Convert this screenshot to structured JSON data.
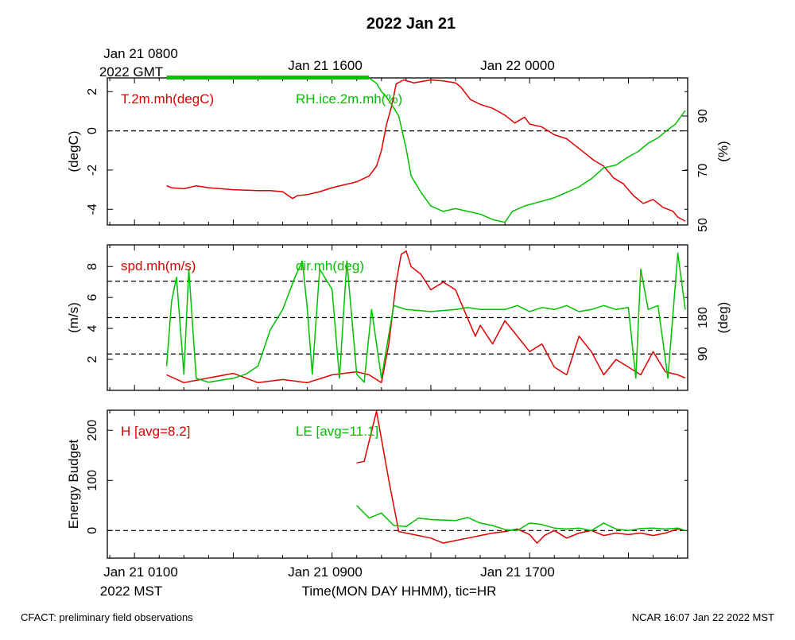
{
  "title": "2022 Jan 21",
  "top_axis": {
    "ticks": [
      "Jan 21 0800",
      "Jan 21 1600",
      "Jan 22 0000"
    ],
    "tz_label": "2022 GMT"
  },
  "bottom_axis": {
    "ticks": [
      "Jan 21 0100",
      "Jan 21 0900",
      "Jan 21 1700"
    ],
    "tz_label": "2022 MST",
    "label": "Time(MON DAY HHMM), tic=HR"
  },
  "footer": {
    "left": "CFACT: preliminary field observations",
    "right": "NCAR 16:07 Jan 22 2022 MST"
  },
  "colors": {
    "red": "#e00000",
    "green": "#00c000",
    "axis": "#000000"
  },
  "chart_data": [
    {
      "type": "line",
      "panel": "temperature-humidity",
      "x_unit": "hours since Jan 21 0000 MST",
      "xlim": [
        -0.1,
        23.4
      ],
      "ylabel": "(degC)",
      "ylim": [
        -4.8,
        2.7
      ],
      "yticks": [
        "2",
        "0",
        "-2",
        "-4"
      ],
      "y2label": "(%)",
      "y2lim": [
        50,
        104
      ],
      "y2ticks": [
        "90",
        "70",
        "50"
      ],
      "reference_lines_y": [
        0
      ],
      "series": [
        {
          "name": "T.2m.mh(degC)",
          "color": "#e00000",
          "axis": "left",
          "points": [
            [
              2.3,
              -2.8
            ],
            [
              2.5,
              -2.9
            ],
            [
              3.0,
              -2.95
            ],
            [
              3.5,
              -2.8
            ],
            [
              4.0,
              -2.9
            ],
            [
              4.5,
              -2.95
            ],
            [
              5.0,
              -3.0
            ],
            [
              6.0,
              -3.05
            ],
            [
              6.5,
              -3.05
            ],
            [
              7.0,
              -3.1
            ],
            [
              7.4,
              -3.45
            ],
            [
              7.6,
              -3.3
            ],
            [
              8.0,
              -3.25
            ],
            [
              8.5,
              -3.1
            ],
            [
              9.0,
              -2.9
            ],
            [
              9.5,
              -2.75
            ],
            [
              10.0,
              -2.6
            ],
            [
              10.5,
              -2.3
            ],
            [
              10.8,
              -1.8
            ],
            [
              11.0,
              -1.0
            ],
            [
              11.2,
              0.3
            ],
            [
              11.4,
              1.2
            ],
            [
              11.6,
              2.4
            ],
            [
              11.9,
              2.6
            ],
            [
              12.3,
              2.45
            ],
            [
              13.0,
              2.6
            ],
            [
              13.5,
              2.55
            ],
            [
              14.0,
              2.45
            ],
            [
              14.2,
              2.25
            ],
            [
              14.6,
              1.6
            ],
            [
              15.0,
              1.35
            ],
            [
              15.5,
              1.15
            ],
            [
              16.0,
              0.8
            ],
            [
              16.4,
              0.4
            ],
            [
              16.8,
              0.7
            ],
            [
              17.0,
              0.35
            ],
            [
              17.5,
              0.2
            ],
            [
              18.0,
              -0.2
            ],
            [
              18.5,
              -0.4
            ],
            [
              18.8,
              -0.7
            ],
            [
              19.2,
              -1.1
            ],
            [
              19.6,
              -1.5
            ],
            [
              20.0,
              -1.8
            ],
            [
              20.4,
              -2.4
            ],
            [
              20.8,
              -2.7
            ],
            [
              21.2,
              -3.3
            ],
            [
              21.6,
              -3.7
            ],
            [
              22.0,
              -3.5
            ],
            [
              22.4,
              -3.9
            ],
            [
              22.8,
              -4.1
            ],
            [
              23.0,
              -4.4
            ],
            [
              23.3,
              -4.6
            ]
          ]
        },
        {
          "name": "RH.ice.2m.mh(%)",
          "color": "#00c000",
          "axis": "right",
          "points": [
            [
              2.3,
              104
            ],
            [
              10.5,
              104
            ],
            [
              10.8,
              102
            ],
            [
              11.0,
              99
            ],
            [
              11.2,
              97
            ],
            [
              11.5,
              93
            ],
            [
              11.7,
              90
            ],
            [
              12.0,
              78
            ],
            [
              12.2,
              68
            ],
            [
              12.6,
              62
            ],
            [
              13.0,
              57
            ],
            [
              13.5,
              55
            ],
            [
              14.0,
              56
            ],
            [
              14.5,
              55
            ],
            [
              15.0,
              54
            ],
            [
              15.5,
              52
            ],
            [
              16.0,
              51
            ],
            [
              16.3,
              55
            ],
            [
              16.8,
              57
            ],
            [
              17.2,
              58
            ],
            [
              17.6,
              59
            ],
            [
              18.0,
              60
            ],
            [
              18.5,
              62
            ],
            [
              19.0,
              64
            ],
            [
              19.5,
              67
            ],
            [
              20.0,
              71
            ],
            [
              20.5,
              72
            ],
            [
              21.0,
              75
            ],
            [
              21.4,
              77
            ],
            [
              21.8,
              80
            ],
            [
              22.2,
              82
            ],
            [
              22.6,
              85
            ],
            [
              22.9,
              87
            ],
            [
              23.3,
              92
            ]
          ]
        }
      ],
      "header_labels": [
        "T.2m.mh(degC)",
        "RH.ice.2m.mh(%)"
      ]
    },
    {
      "type": "line",
      "panel": "wind",
      "x_unit": "hours since Jan 21 0000 MST",
      "xlim": [
        -0.1,
        23.4
      ],
      "ylabel": "(m/s)",
      "ylim": [
        0,
        9.4
      ],
      "yticks": [
        "8",
        "6",
        "4",
        "2"
      ],
      "y2label": "(deg)",
      "y2lim": [
        0,
        360
      ],
      "y2ticks": [
        "180",
        "90"
      ],
      "reference_lines_y2": [
        90,
        180,
        270
      ],
      "series": [
        {
          "name": "spd.mh(m/s)",
          "color": "#e00000",
          "axis": "left",
          "points": [
            [
              2.3,
              1.0
            ],
            [
              3.0,
              0.5
            ],
            [
              4.0,
              0.8
            ],
            [
              5.0,
              1.1
            ],
            [
              6.0,
              0.5
            ],
            [
              7.0,
              0.7
            ],
            [
              8.0,
              0.5
            ],
            [
              9.0,
              1.0
            ],
            [
              10.0,
              1.2
            ],
            [
              10.5,
              1.0
            ],
            [
              11.0,
              0.5
            ],
            [
              11.3,
              3.0
            ],
            [
              11.6,
              7.0
            ],
            [
              11.8,
              8.8
            ],
            [
              12.0,
              9.0
            ],
            [
              12.2,
              8.0
            ],
            [
              12.6,
              7.5
            ],
            [
              13.0,
              6.5
            ],
            [
              13.5,
              7.0
            ],
            [
              14.0,
              6.5
            ],
            [
              14.4,
              5.0
            ],
            [
              14.8,
              3.5
            ],
            [
              15.0,
              4.2
            ],
            [
              15.5,
              3.0
            ],
            [
              16.0,
              4.5
            ],
            [
              16.5,
              3.5
            ],
            [
              17.0,
              2.5
            ],
            [
              17.5,
              3.0
            ],
            [
              18.0,
              1.5
            ],
            [
              18.5,
              1.0
            ],
            [
              19.0,
              3.5
            ],
            [
              19.5,
              2.5
            ],
            [
              20.0,
              1.0
            ],
            [
              20.5,
              2.0
            ],
            [
              21.0,
              1.5
            ],
            [
              21.5,
              1.0
            ],
            [
              22.0,
              2.5
            ],
            [
              22.5,
              1.2
            ],
            [
              23.0,
              1.0
            ],
            [
              23.3,
              0.8
            ]
          ]
        },
        {
          "name": "dir.mh(deg)",
          "color": "#00c000",
          "axis": "right",
          "points": [
            [
              2.3,
              60
            ],
            [
              2.5,
              220
            ],
            [
              2.7,
              280
            ],
            [
              3.0,
              40
            ],
            [
              3.2,
              300
            ],
            [
              3.5,
              30
            ],
            [
              4.0,
              20
            ],
            [
              5.0,
              30
            ],
            [
              5.5,
              40
            ],
            [
              6.0,
              60
            ],
            [
              6.5,
              150
            ],
            [
              7.0,
              200
            ],
            [
              7.5,
              280
            ],
            [
              7.8,
              320
            ],
            [
              8.0,
              200
            ],
            [
              8.2,
              40
            ],
            [
              8.5,
              300
            ],
            [
              9.0,
              250
            ],
            [
              9.3,
              30
            ],
            [
              9.6,
              320
            ],
            [
              10.0,
              40
            ],
            [
              10.3,
              20
            ],
            [
              10.6,
              200
            ],
            [
              11.0,
              30
            ],
            [
              11.5,
              210
            ],
            [
              12.0,
              200
            ],
            [
              13.0,
              195
            ],
            [
              14.0,
              200
            ],
            [
              14.5,
              205
            ],
            [
              15.0,
              200
            ],
            [
              16.0,
              200
            ],
            [
              16.5,
              210
            ],
            [
              17.0,
              195
            ],
            [
              17.5,
              205
            ],
            [
              18.0,
              200
            ],
            [
              18.5,
              210
            ],
            [
              19.0,
              195
            ],
            [
              19.5,
              200
            ],
            [
              20.0,
              210
            ],
            [
              20.5,
              200
            ],
            [
              21.0,
              205
            ],
            [
              21.3,
              30
            ],
            [
              21.5,
              300
            ],
            [
              21.8,
              200
            ],
            [
              22.2,
              210
            ],
            [
              22.6,
              30
            ],
            [
              23.0,
              340
            ],
            [
              23.3,
              200
            ]
          ]
        }
      ],
      "header_labels": [
        "spd.mh(m/s)",
        "dir.mh(deg)"
      ]
    },
    {
      "type": "line",
      "panel": "energy-budget",
      "x_unit": "hours since Jan 21 0000 MST",
      "xlim": [
        -0.1,
        23.4
      ],
      "ylabel": "Energy Budget",
      "ylim": [
        -55,
        240
      ],
      "yticks": [
        "200",
        "100",
        "0"
      ],
      "reference_lines_y": [
        0
      ],
      "series": [
        {
          "name": "H [avg=8.2]",
          "color": "#e00000",
          "axis": "left",
          "points": [
            [
              10.0,
              135
            ],
            [
              10.3,
              138
            ],
            [
              10.8,
              238
            ],
            [
              11.3,
              100
            ],
            [
              11.7,
              -2
            ],
            [
              12.0,
              -5
            ],
            [
              12.5,
              -10
            ],
            [
              13.0,
              -15
            ],
            [
              13.5,
              -25
            ],
            [
              14.0,
              -20
            ],
            [
              14.5,
              -15
            ],
            [
              15.0,
              -10
            ],
            [
              15.5,
              -5
            ],
            [
              16.0,
              -2
            ],
            [
              16.5,
              3
            ],
            [
              17.0,
              -8
            ],
            [
              17.3,
              -25
            ],
            [
              17.6,
              -10
            ],
            [
              18.0,
              0
            ],
            [
              18.5,
              -15
            ],
            [
              19.0,
              -5
            ],
            [
              19.5,
              0
            ],
            [
              20.0,
              -10
            ],
            [
              20.5,
              -5
            ],
            [
              21.0,
              -8
            ],
            [
              21.5,
              -5
            ],
            [
              22.0,
              -10
            ],
            [
              22.5,
              -5
            ],
            [
              23.0,
              3
            ],
            [
              23.3,
              0
            ]
          ]
        },
        {
          "name": "LE [avg=11.1]",
          "color": "#00c000",
          "axis": "left",
          "points": [
            [
              10.0,
              50
            ],
            [
              10.5,
              25
            ],
            [
              11.0,
              35
            ],
            [
              11.5,
              10
            ],
            [
              12.0,
              8
            ],
            [
              12.5,
              25
            ],
            [
              13.0,
              22
            ],
            [
              14.0,
              20
            ],
            [
              14.5,
              26
            ],
            [
              15.0,
              15
            ],
            [
              15.5,
              10
            ],
            [
              16.0,
              2
            ],
            [
              16.5,
              0
            ],
            [
              17.0,
              15
            ],
            [
              17.5,
              12
            ],
            [
              18.0,
              5
            ],
            [
              18.5,
              3
            ],
            [
              19.0,
              5
            ],
            [
              19.5,
              0
            ],
            [
              20.0,
              15
            ],
            [
              20.5,
              3
            ],
            [
              21.0,
              0
            ],
            [
              21.5,
              4
            ],
            [
              22.0,
              5
            ],
            [
              22.5,
              3
            ],
            [
              23.0,
              5
            ],
            [
              23.3,
              0
            ]
          ]
        }
      ],
      "header_labels": [
        "H [avg=8.2]",
        "LE [avg=11.1]"
      ]
    }
  ]
}
